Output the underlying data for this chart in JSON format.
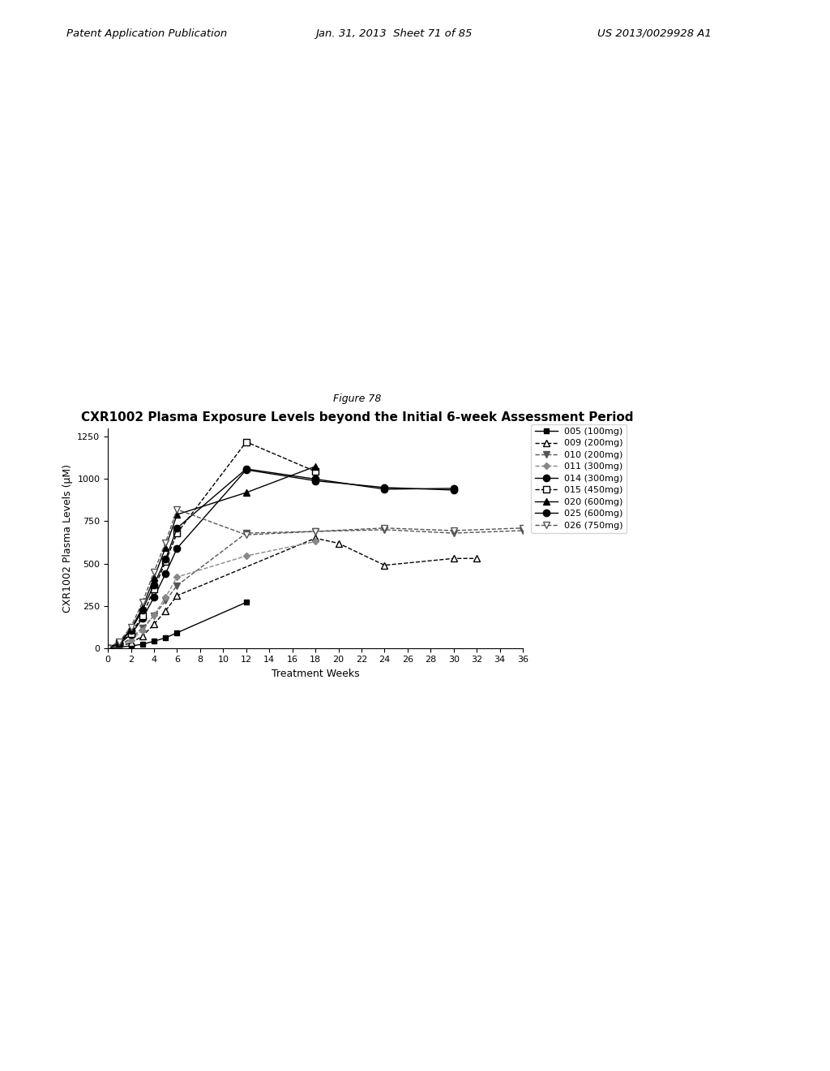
{
  "figure_label": "Figure 78",
  "title": "CXR1002 Plasma Exposure Levels beyond the Initial 6-week Assessment Period",
  "xlabel": "Treatment Weeks",
  "ylabel": "CXR1002 Plasma Levels (μM)",
  "ylim": [
    0,
    1300
  ],
  "xlim": [
    0,
    36
  ],
  "yticks": [
    0,
    250,
    500,
    750,
    1000,
    1250
  ],
  "xticks": [
    0,
    2,
    4,
    6,
    8,
    10,
    12,
    14,
    16,
    18,
    20,
    22,
    24,
    26,
    28,
    30,
    32,
    34,
    36
  ],
  "header_left": "Patent Application Publication",
  "header_date": "Jan. 31, 2013  Sheet 71 of 85",
  "header_right": "US 2013/0029928 A1",
  "background_color": "#ffffff",
  "series": [
    {
      "label": "005 (100mg)",
      "color": "#000000",
      "linestyle": "-",
      "marker": "s",
      "mfc": "#000000",
      "ms": 5,
      "x": [
        0,
        1,
        2,
        3,
        4,
        5,
        6,
        12
      ],
      "y": [
        0,
        5,
        12,
        22,
        40,
        60,
        90,
        270
      ]
    },
    {
      "label": "009 (200mg)",
      "color": "#000000",
      "linestyle": "--",
      "marker": "^",
      "mfc": "white",
      "ms": 6,
      "x": [
        0,
        1,
        2,
        3,
        4,
        5,
        6,
        18,
        20,
        24,
        30,
        32
      ],
      "y": [
        0,
        10,
        30,
        70,
        140,
        220,
        310,
        650,
        620,
        490,
        530,
        530
      ]
    },
    {
      "label": "010 (200mg)",
      "color": "#555555",
      "linestyle": "--",
      "marker": "v",
      "mfc": "#555555",
      "ms": 6,
      "x": [
        0,
        1,
        2,
        3,
        4,
        5,
        6,
        12,
        18,
        24,
        30,
        36
      ],
      "y": [
        0,
        20,
        55,
        120,
        190,
        280,
        370,
        680,
        690,
        700,
        680,
        695
      ]
    },
    {
      "label": "011 (300mg)",
      "color": "#888888",
      "linestyle": "--",
      "marker": "D",
      "mfc": "#888888",
      "ms": 4,
      "x": [
        0,
        1,
        2,
        3,
        4,
        5,
        6,
        12,
        18
      ],
      "y": [
        0,
        15,
        45,
        105,
        195,
        300,
        420,
        545,
        630
      ]
    },
    {
      "label": "014 (300mg)",
      "color": "#000000",
      "linestyle": "-",
      "marker": "o",
      "mfc": "#000000",
      "ms": 6,
      "x": [
        0,
        1,
        2,
        3,
        4,
        5,
        6,
        12,
        18,
        24,
        30
      ],
      "y": [
        0,
        25,
        80,
        175,
        300,
        440,
        590,
        1055,
        990,
        950,
        935
      ]
    },
    {
      "label": "015 (450mg)",
      "color": "#000000",
      "linestyle": "--",
      "marker": "s",
      "mfc": "white",
      "ms": 6,
      "x": [
        0,
        1,
        2,
        3,
        4,
        5,
        6,
        12,
        18
      ],
      "y": [
        0,
        30,
        85,
        190,
        350,
        510,
        680,
        1220,
        1045
      ]
    },
    {
      "label": "020 (600mg)",
      "color": "#000000",
      "linestyle": "-",
      "marker": "^",
      "mfc": "#000000",
      "ms": 6,
      "x": [
        0,
        1,
        2,
        3,
        4,
        5,
        6,
        12,
        18
      ],
      "y": [
        0,
        35,
        110,
        240,
        415,
        595,
        790,
        920,
        1075
      ]
    },
    {
      "label": "025 (600mg)",
      "color": "#000000",
      "linestyle": "-",
      "marker": "o",
      "mfc": "#000000",
      "ms": 6,
      "x": [
        0,
        1,
        2,
        3,
        4,
        5,
        6,
        12,
        18,
        24,
        30
      ],
      "y": [
        0,
        28,
        105,
        225,
        375,
        525,
        710,
        1060,
        1000,
        940,
        945
      ]
    },
    {
      "label": "026 (750mg)",
      "color": "#555555",
      "linestyle": "--",
      "marker": "v",
      "mfc": "white",
      "ms": 6,
      "x": [
        0,
        1,
        2,
        3,
        4,
        5,
        6,
        12,
        18,
        24,
        30,
        36
      ],
      "y": [
        0,
        38,
        125,
        270,
        450,
        625,
        820,
        670,
        690,
        710,
        695,
        710
      ]
    }
  ]
}
